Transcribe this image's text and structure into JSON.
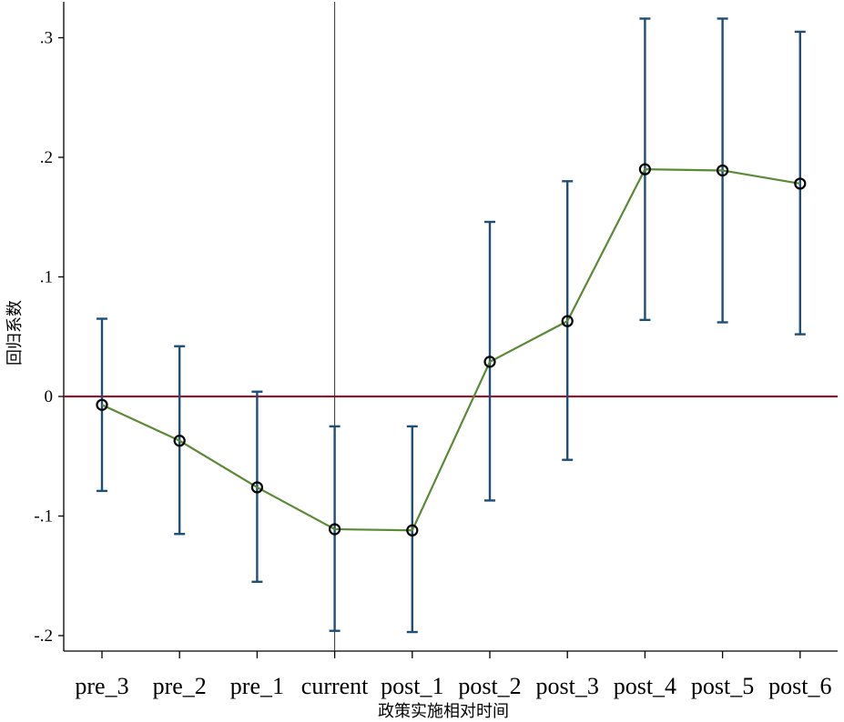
{
  "chart_data": {
    "type": "line",
    "title": "",
    "xlabel": "政策实施相对时间",
    "ylabel": "回归系数",
    "categories": [
      "pre_3",
      "pre_2",
      "pre_1",
      "current",
      "post_1",
      "post_2",
      "post_3",
      "post_4",
      "post_5",
      "post_6"
    ],
    "series": [
      {
        "values": [
          -0.007,
          -0.037,
          -0.076,
          -0.111,
          -0.112,
          0.029,
          0.063,
          0.19,
          0.189,
          0.178
        ],
        "ci_lower": [
          -0.079,
          -0.115,
          -0.155,
          -0.196,
          -0.197,
          -0.087,
          -0.053,
          0.064,
          0.062,
          0.052
        ],
        "ci_upper": [
          0.065,
          0.042,
          0.004,
          -0.025,
          -0.025,
          0.146,
          0.18,
          0.316,
          0.316,
          0.305
        ]
      }
    ],
    "yticks": [
      -0.2,
      -0.1,
      0,
      0.1,
      0.2,
      0.3
    ],
    "ytick_labels": [
      "-.2",
      "-.1",
      "0",
      ".1",
      ".2",
      ".3"
    ],
    "ylim": [
      -0.21,
      0.33
    ],
    "reference_line_y": 0,
    "reference_line_category": "current",
    "grid": false,
    "colors": {
      "line": "#5a8a35",
      "ci": "#1f4e79",
      "marker": "#000000",
      "zero_line": "#8b1a2b",
      "vline": "#333333",
      "axis": "#000000"
    }
  }
}
